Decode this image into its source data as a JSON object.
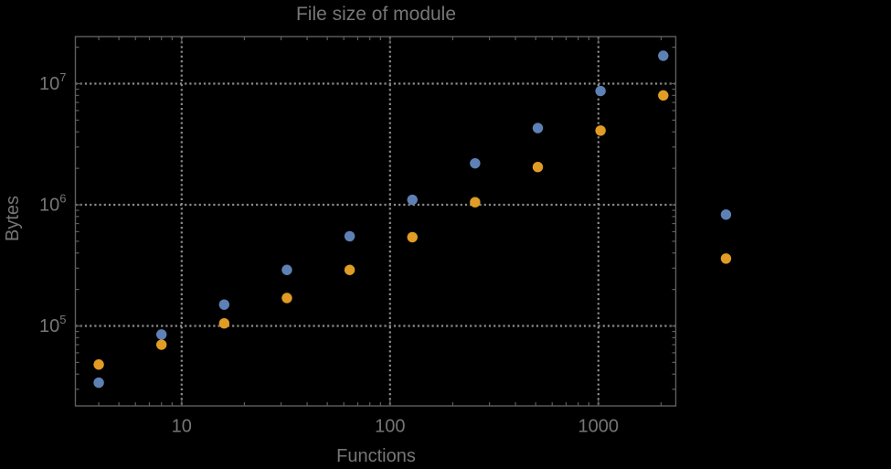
{
  "window": {
    "background": "#000000"
  },
  "chart_data": {
    "type": "scatter",
    "title": "File size of module",
    "xlabel": "Functions",
    "ylabel": "Bytes",
    "xscale": "log",
    "yscale": "log",
    "xlim": [
      3.09,
      2352
    ],
    "ylim": [
      21860,
      24480000
    ],
    "grid": {
      "x": [
        10,
        100,
        1000
      ],
      "y": [
        100000,
        1000000,
        10000000
      ],
      "style": "dotted",
      "color": "#8b8b8b"
    },
    "x_ticks": [
      {
        "value": 10,
        "label": "10"
      },
      {
        "value": 100,
        "label": "100"
      },
      {
        "value": 1000,
        "label": "1000"
      }
    ],
    "y_ticks": [
      {
        "value": 100000,
        "mantissa": "10",
        "exponent": "5"
      },
      {
        "value": 1000000,
        "mantissa": "10",
        "exponent": "6"
      },
      {
        "value": 10000000,
        "mantissa": "10",
        "exponent": "7"
      }
    ],
    "x": [
      4,
      8,
      16,
      32,
      64,
      128,
      256,
      512,
      1024,
      2048,
      4096
    ],
    "series": [
      {
        "name": "series-1-blue",
        "color": "#5e81b5",
        "values": [
          34000,
          85000,
          150000,
          290000,
          550000,
          1100000,
          2200000,
          4300000,
          8700000,
          17000000,
          830000
        ]
      },
      {
        "name": "series-2-orange",
        "color": "#e09c24",
        "values": [
          48000,
          70000,
          105000,
          170000,
          290000,
          540000,
          1050000,
          2050000,
          4100000,
          8000000,
          360000
        ]
      }
    ],
    "legend": "none"
  }
}
